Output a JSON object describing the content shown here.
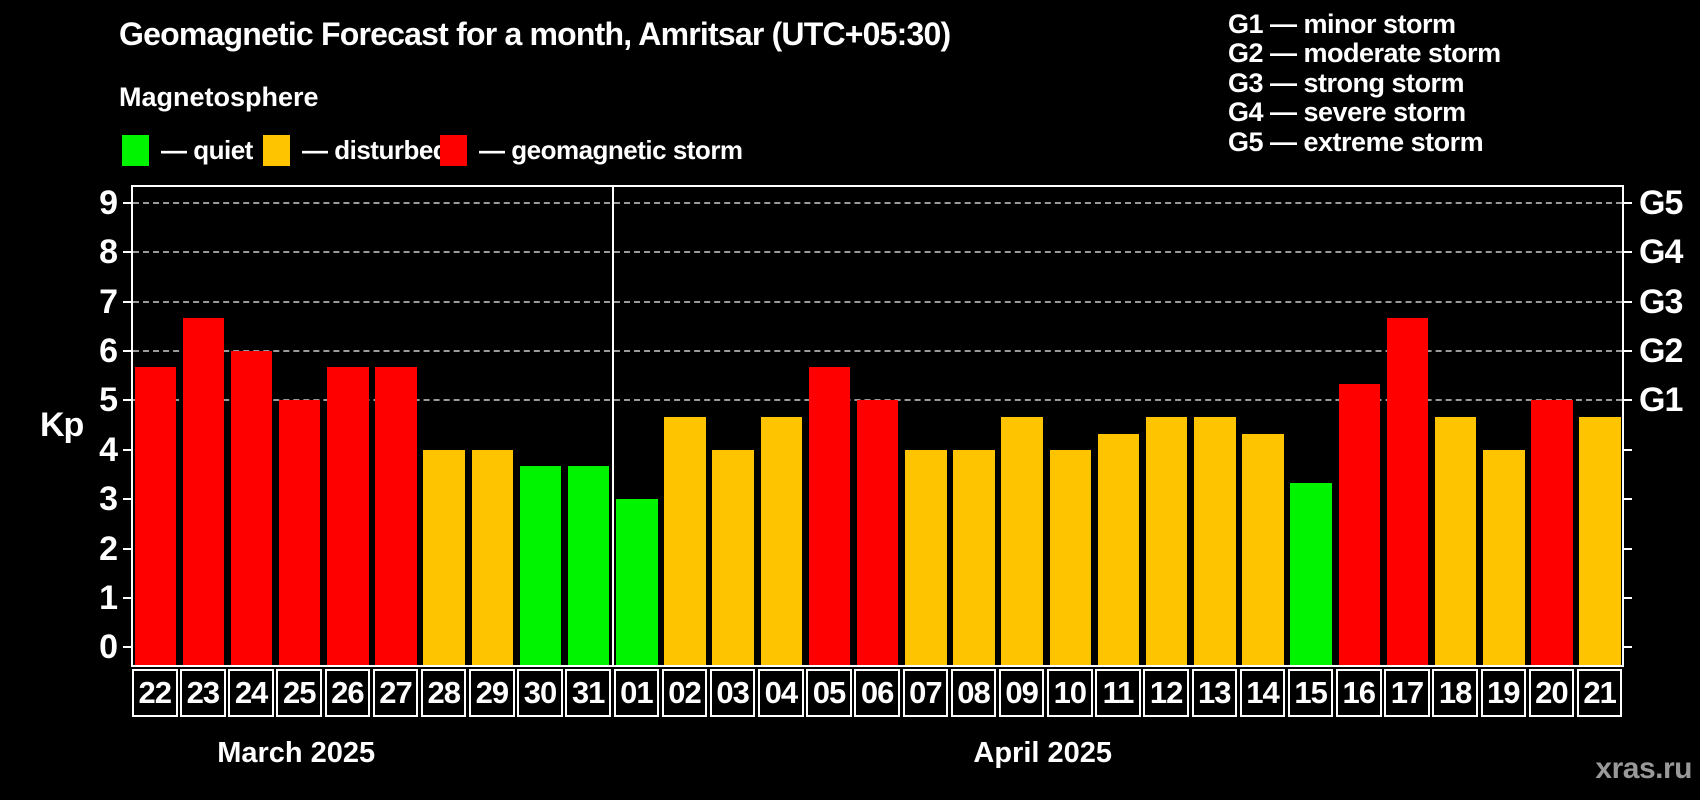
{
  "header": {
    "title": "Geomagnetic Forecast for a month, Amritsar (UTC+05:30)",
    "subtitle": "Magnetosphere",
    "status_legend": [
      {
        "key": "quiet",
        "label": "— quiet",
        "color": "#00f400"
      },
      {
        "key": "disturbed",
        "label": "— disturbed",
        "color": "#ffc400"
      },
      {
        "key": "storm",
        "label": "— geomagnetic storm",
        "color": "#ff0000"
      }
    ]
  },
  "storm_scale_legend": [
    "G1 — minor storm",
    "G2 — moderate storm",
    "G3 — strong storm",
    "G4 — severe storm",
    "G5 — extreme storm"
  ],
  "watermark": "xras.ru",
  "chart_data": {
    "type": "bar",
    "title": "Geomagnetic Forecast for a month, Amritsar (UTC+05:30)",
    "xlabel": "",
    "ylabel": "Kp",
    "ylim": [
      0,
      9
    ],
    "yticks": [
      0,
      1,
      2,
      3,
      4,
      5,
      6,
      7,
      8,
      9
    ],
    "gridlines_at": [
      5,
      6,
      7,
      8,
      9
    ],
    "grid": "horizontal dashed lines at Kp 5-9 only",
    "legend_position": "top-left",
    "right_axis": [
      {
        "kp": 5,
        "label": "G1"
      },
      {
        "kp": 6,
        "label": "G2"
      },
      {
        "kp": 7,
        "label": "G3"
      },
      {
        "kp": 8,
        "label": "G4"
      },
      {
        "kp": 9,
        "label": "G5"
      }
    ],
    "months": [
      {
        "label": "March 2025",
        "days": [
          "22",
          "23",
          "24",
          "25",
          "26",
          "27",
          "28",
          "29",
          "30",
          "31"
        ]
      },
      {
        "label": "April 2025",
        "days": [
          "01",
          "02",
          "03",
          "04",
          "05",
          "06",
          "07",
          "08",
          "09",
          "10",
          "11",
          "12",
          "13",
          "14",
          "15",
          "16",
          "17",
          "18",
          "19",
          "20",
          "21"
        ]
      }
    ],
    "categories": [
      "22",
      "23",
      "24",
      "25",
      "26",
      "27",
      "28",
      "29",
      "30",
      "31",
      "01",
      "02",
      "03",
      "04",
      "05",
      "06",
      "07",
      "08",
      "09",
      "10",
      "11",
      "12",
      "13",
      "14",
      "15",
      "16",
      "17",
      "18",
      "19",
      "20",
      "21"
    ],
    "values": [
      5.67,
      6.67,
      6.0,
      5.0,
      5.67,
      5.67,
      4.0,
      4.0,
      3.67,
      3.67,
      3.0,
      4.67,
      4.0,
      4.67,
      5.67,
      5.0,
      4.0,
      4.0,
      4.67,
      4.0,
      4.33,
      4.67,
      4.67,
      4.33,
      3.33,
      5.33,
      6.67,
      4.67,
      4.0,
      5.0,
      4.67
    ],
    "statuses": [
      "storm",
      "storm",
      "storm",
      "storm",
      "storm",
      "storm",
      "disturbed",
      "disturbed",
      "quiet",
      "quiet",
      "quiet",
      "disturbed",
      "disturbed",
      "disturbed",
      "storm",
      "storm",
      "disturbed",
      "disturbed",
      "disturbed",
      "disturbed",
      "disturbed",
      "disturbed",
      "disturbed",
      "disturbed",
      "quiet",
      "storm",
      "storm",
      "disturbed",
      "disturbed",
      "storm",
      "disturbed"
    ],
    "colors": {
      "quiet": "#00f400",
      "disturbed": "#ffc400",
      "storm": "#ff0000"
    }
  }
}
